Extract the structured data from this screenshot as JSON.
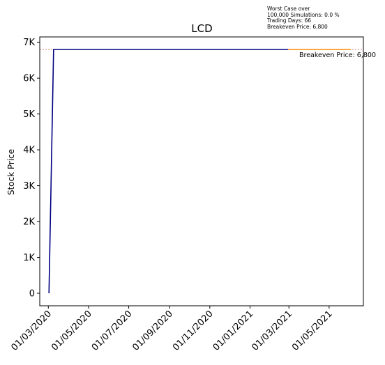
{
  "chart_data": {
    "type": "line",
    "title": "LCD",
    "xlabel": "",
    "ylabel": "Stock Price",
    "ylim": [
      -350,
      7150
    ],
    "xlim": [
      "2020-02-17",
      "2021-06-22"
    ],
    "grid": false,
    "y_ticks": [
      {
        "value": 0,
        "label": "0"
      },
      {
        "value": 1000,
        "label": "1K"
      },
      {
        "value": 2000,
        "label": "2K"
      },
      {
        "value": 3000,
        "label": "3K"
      },
      {
        "value": 4000,
        "label": "4K"
      },
      {
        "value": 5000,
        "label": "5K"
      },
      {
        "value": 6000,
        "label": "6K"
      },
      {
        "value": 7000,
        "label": "7K"
      }
    ],
    "x_ticks": [
      {
        "date": "2020-03-01",
        "label": "01/03/2020"
      },
      {
        "date": "2020-05-01",
        "label": "01/05/2020"
      },
      {
        "date": "2020-07-01",
        "label": "01/07/2020"
      },
      {
        "date": "2020-09-01",
        "label": "01/09/2020"
      },
      {
        "date": "2020-11-01",
        "label": "01/11/2020"
      },
      {
        "date": "2021-01-01",
        "label": "01/01/2021"
      },
      {
        "date": "2021-03-01",
        "label": "01/03/2021"
      },
      {
        "date": "2021-05-01",
        "label": "01/05/2021"
      }
    ],
    "series": [
      {
        "color": "#000080",
        "points": [
          {
            "x": "2020-03-02",
            "y": 0
          },
          {
            "x": "2020-03-09",
            "y": 6800
          },
          {
            "x": "2021-02-28",
            "y": 6800
          }
        ]
      },
      {
        "color": "#ff8c00",
        "points": [
          {
            "x": "2021-02-28",
            "y": 6800
          },
          {
            "x": "2021-06-03",
            "y": 6800
          }
        ]
      }
    ],
    "breakeven": {
      "value": 6800,
      "label": "Breakeven Price: 6,800",
      "color": "#d9534f"
    },
    "annotation": {
      "lines": [
        "Worst Case over",
        "100,000 Simulations: 0.0 %",
        "Trading Days: 66",
        "Breakeven Price: 6,800"
      ]
    }
  }
}
